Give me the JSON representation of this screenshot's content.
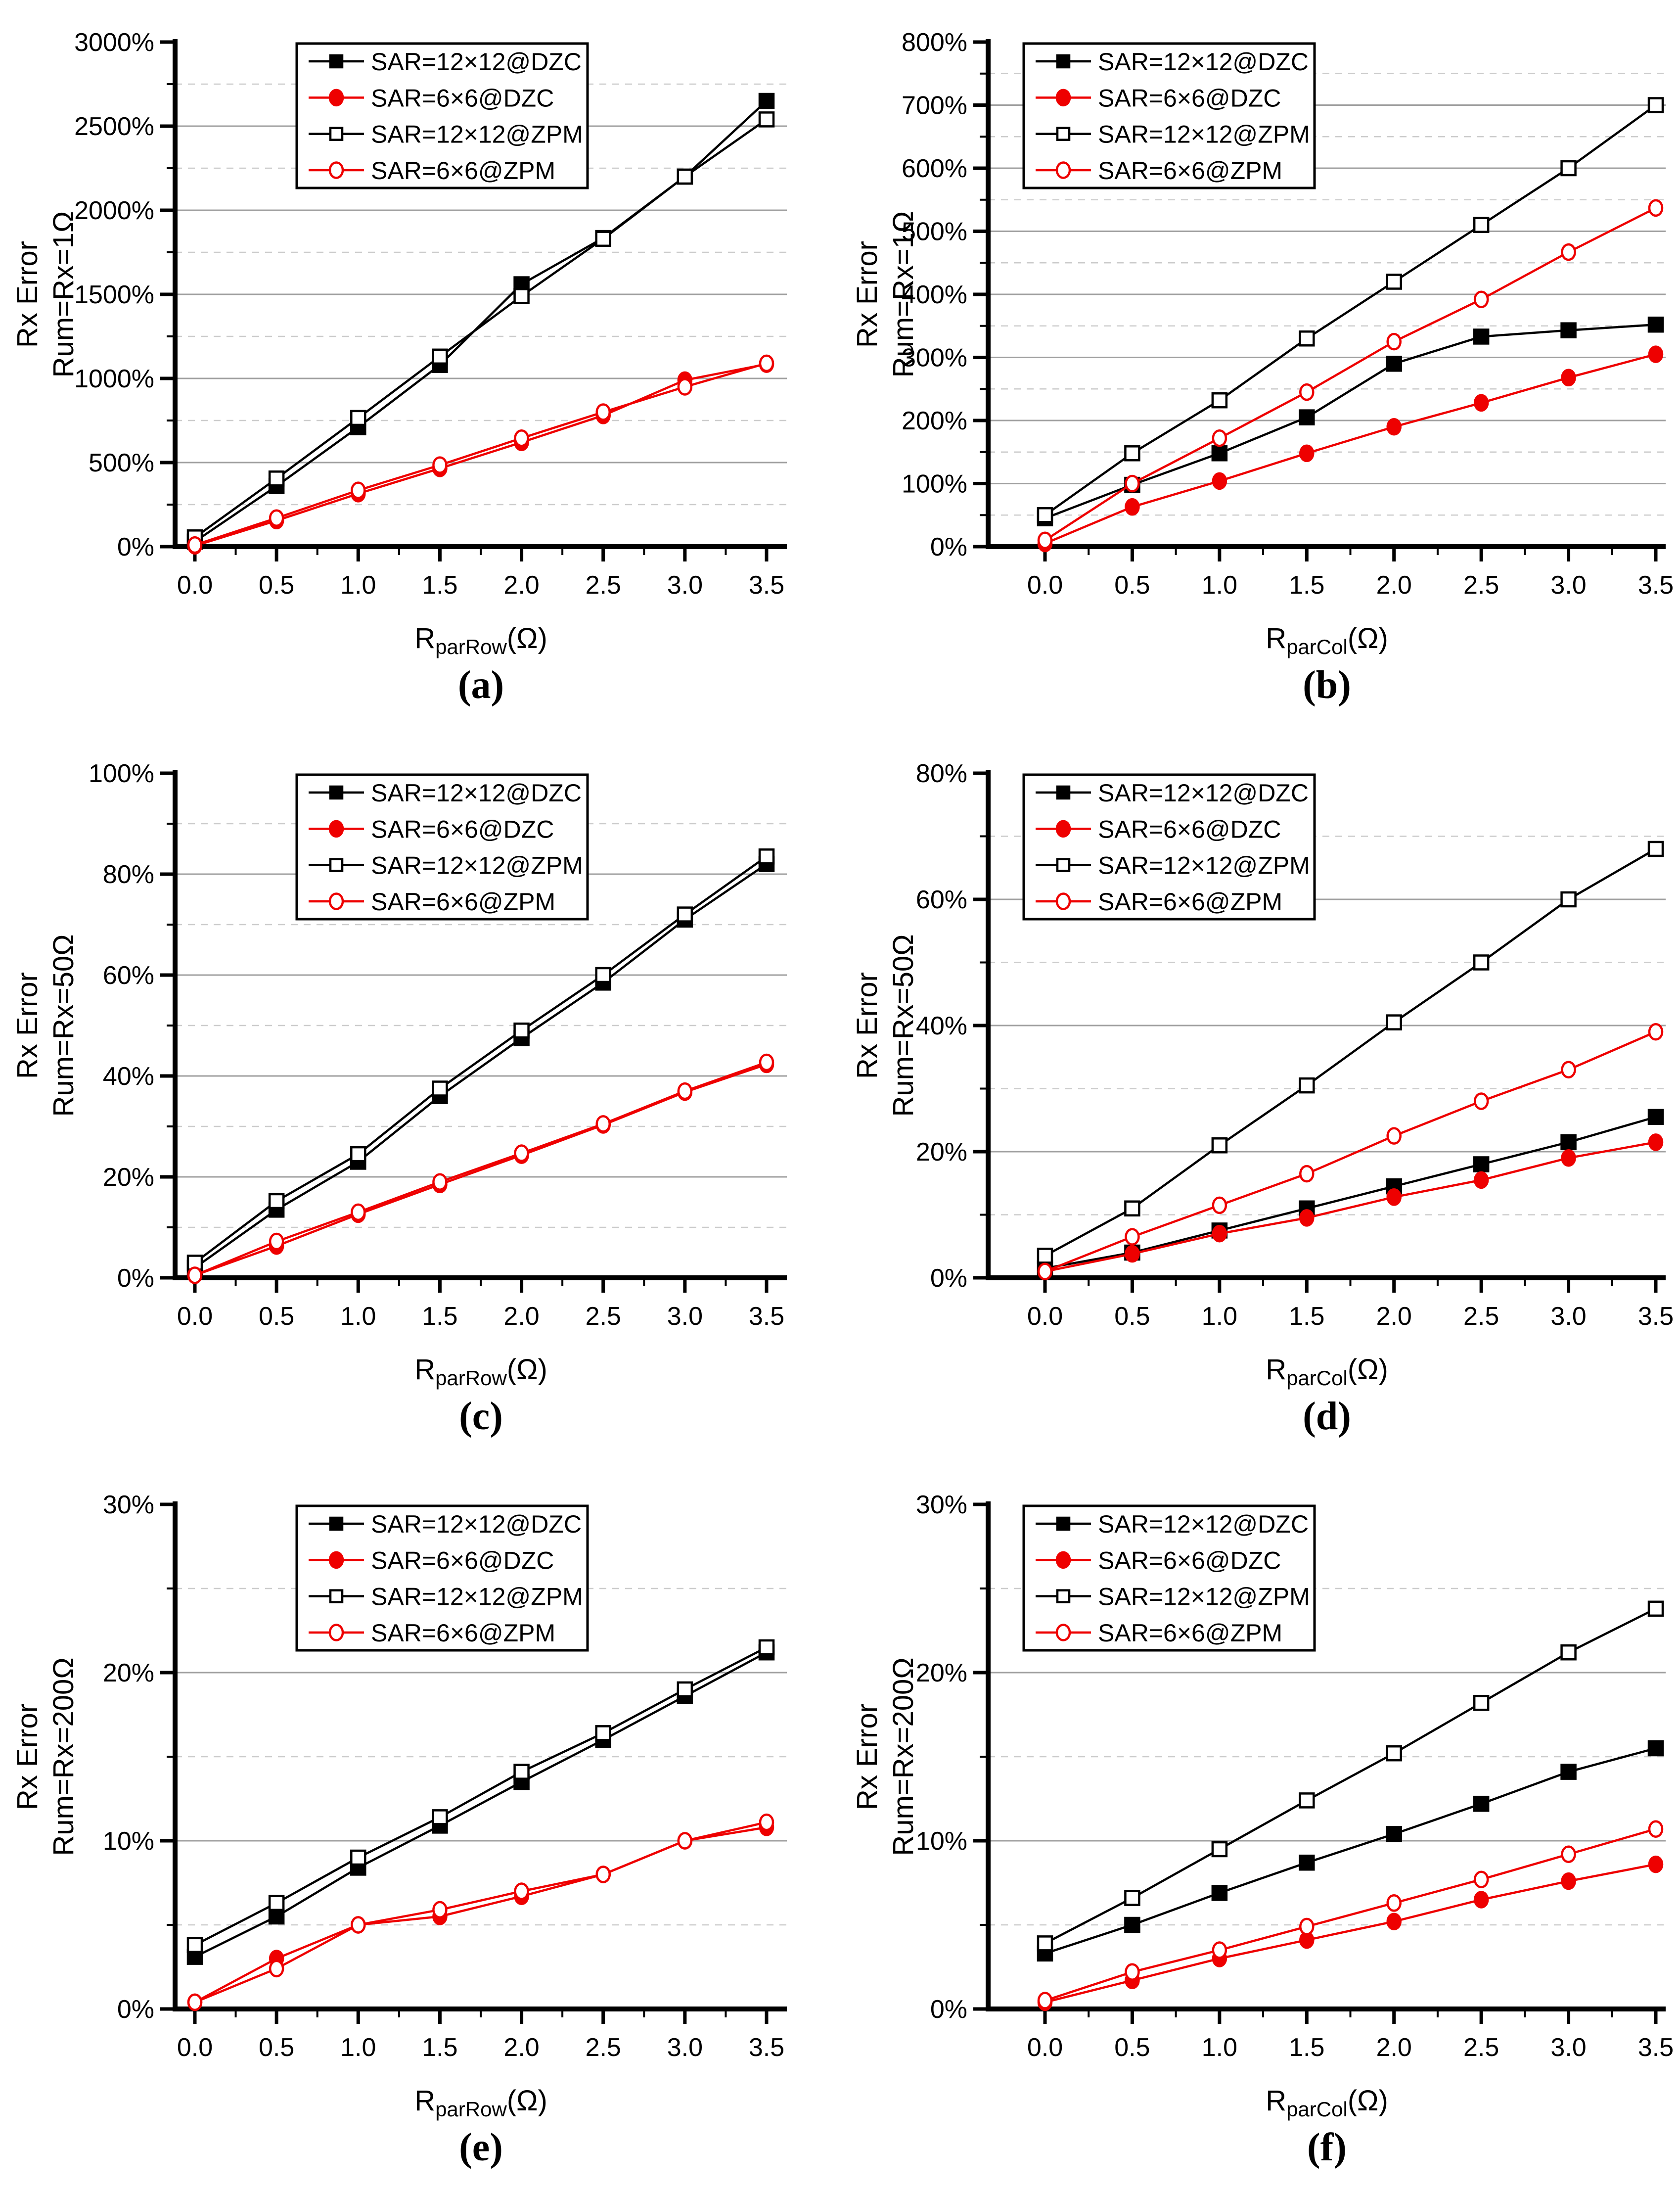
{
  "figure_title": "",
  "colors": {
    "black_series": "#000000",
    "red_series": "#ee0000",
    "major_grid": "#a0a0a0",
    "minor_grid": "#cccccc",
    "axis": "#000000",
    "background": "#ffffff"
  },
  "legend_labels": [
    "SAR=12×12@DZC",
    "SAR=6×6@DZC",
    "SAR=12×12@ZPM",
    "SAR=6×6@ZPM"
  ],
  "x_tick_labels": [
    "0.0",
    "0.5",
    "1.0",
    "1.5",
    "2.0",
    "2.5",
    "3.0",
    "3.5"
  ],
  "chart_data": [
    {
      "type": "line",
      "caption": "(a)",
      "xlabel": {
        "base": "R",
        "sub": "parRow",
        "unit": "(Ω)"
      },
      "ylabel_lines": [
        "Rx Error",
        "Rum=Rx=1Ω"
      ],
      "x": [
        0,
        0.5,
        1.0,
        1.5,
        2.0,
        2.5,
        3.0,
        3.5
      ],
      "xlim": [
        0,
        3.5
      ],
      "ylim": [
        0,
        3000
      ],
      "ytick_step": 500,
      "yminor_step": 250,
      "ytick_suffix": "%",
      "grid": true,
      "legend_position": "center",
      "series": [
        {
          "name": "SAR=12×12@DZC",
          "color": "#000000",
          "marker": "square",
          "filled": true,
          "values": [
            30,
            360,
            710,
            1080,
            1560,
            1835,
            2200,
            2650
          ]
        },
        {
          "name": "SAR=6×6@DZC",
          "color": "#ee0000",
          "marker": "circle",
          "filled": true,
          "values": [
            5,
            155,
            315,
            465,
            620,
            780,
            990,
            1085
          ]
        },
        {
          "name": "SAR=12×12@ZPM",
          "color": "#000000",
          "marker": "square",
          "filled": false,
          "values": [
            55,
            405,
            765,
            1130,
            1490,
            1830,
            2200,
            2540
          ]
        },
        {
          "name": "SAR=6×6@ZPM",
          "color": "#ee0000",
          "marker": "circle",
          "filled": false,
          "values": [
            10,
            170,
            335,
            485,
            645,
            800,
            950,
            1090
          ]
        }
      ]
    },
    {
      "type": "line",
      "caption": "(b)",
      "xlabel": {
        "base": "R",
        "sub": "parCol",
        "unit": "(Ω)"
      },
      "ylabel_lines": [
        "Rx Error",
        "Rum=Rx=1Ω"
      ],
      "x": [
        0,
        0.5,
        1.0,
        1.5,
        2.0,
        2.5,
        3.0,
        3.5
      ],
      "xlim": [
        0,
        3.5
      ],
      "ylim": [
        0,
        800
      ],
      "ytick_step": 100,
      "yminor_step": 50,
      "ytick_suffix": "%",
      "grid": true,
      "legend_position": "left",
      "series": [
        {
          "name": "SAR=12×12@DZC",
          "color": "#000000",
          "marker": "square",
          "filled": true,
          "values": [
            45,
            98,
            148,
            205,
            290,
            333,
            343,
            352
          ]
        },
        {
          "name": "SAR=6×6@DZC",
          "color": "#ee0000",
          "marker": "circle",
          "filled": true,
          "values": [
            5,
            63,
            104,
            148,
            190,
            228,
            268,
            305
          ]
        },
        {
          "name": "SAR=12×12@ZPM",
          "color": "#000000",
          "marker": "square",
          "filled": false,
          "values": [
            50,
            148,
            232,
            330,
            420,
            510,
            600,
            700
          ]
        },
        {
          "name": "SAR=6×6@ZPM",
          "color": "#ee0000",
          "marker": "circle",
          "filled": false,
          "values": [
            10,
            100,
            172,
            245,
            325,
            392,
            467,
            537
          ]
        }
      ]
    },
    {
      "type": "line",
      "caption": "(c)",
      "xlabel": {
        "base": "R",
        "sub": "parRow",
        "unit": "(Ω)"
      },
      "ylabel_lines": [
        "Rx Error",
        "Rum=Rx=50Ω"
      ],
      "x": [
        0,
        0.5,
        1.0,
        1.5,
        2.0,
        2.5,
        3.0,
        3.5
      ],
      "xlim": [
        0,
        3.5
      ],
      "ylim": [
        0,
        100
      ],
      "ytick_step": 20,
      "yminor_step": 10,
      "ytick_suffix": "%",
      "grid": true,
      "legend_position": "center",
      "series": [
        {
          "name": "SAR=12×12@DZC",
          "color": "#000000",
          "marker": "square",
          "filled": true,
          "values": [
            2,
            13.5,
            23,
            36,
            47.5,
            58.5,
            71,
            82
          ]
        },
        {
          "name": "SAR=6×6@DZC",
          "color": "#ee0000",
          "marker": "circle",
          "filled": true,
          "values": [
            0.5,
            6.3,
            12.6,
            18.5,
            24.3,
            30.3,
            36.8,
            42.3
          ]
        },
        {
          "name": "SAR=12×12@ZPM",
          "color": "#000000",
          "marker": "square",
          "filled": false,
          "values": [
            3,
            15.2,
            24.5,
            37.5,
            49,
            60,
            72,
            83.5
          ]
        },
        {
          "name": "SAR=6×6@ZPM",
          "color": "#ee0000",
          "marker": "circle",
          "filled": false,
          "values": [
            0.5,
            7.2,
            13,
            19,
            24.7,
            30.5,
            37,
            42.7
          ]
        }
      ]
    },
    {
      "type": "line",
      "caption": "(d)",
      "xlabel": {
        "base": "R",
        "sub": "parCol",
        "unit": "(Ω)"
      },
      "ylabel_lines": [
        "Rx Error",
        "Rum=Rx=50Ω"
      ],
      "x": [
        0,
        0.5,
        1.0,
        1.5,
        2.0,
        2.5,
        3.0,
        3.5
      ],
      "xlim": [
        0,
        3.5
      ],
      "ylim": [
        0,
        80
      ],
      "ytick_step": 20,
      "yminor_step": 10,
      "ytick_suffix": "%",
      "grid": true,
      "legend_position": "left",
      "series": [
        {
          "name": "SAR=12×12@DZC",
          "color": "#000000",
          "marker": "square",
          "filled": true,
          "values": [
            1.5,
            4,
            7.5,
            11,
            14.5,
            18,
            21.5,
            25.5
          ]
        },
        {
          "name": "SAR=6×6@DZC",
          "color": "#ee0000",
          "marker": "circle",
          "filled": true,
          "values": [
            1,
            3.8,
            7,
            9.5,
            12.8,
            15.5,
            19,
            21.5
          ]
        },
        {
          "name": "SAR=12×12@ZPM",
          "color": "#000000",
          "marker": "square",
          "filled": false,
          "values": [
            3.5,
            11,
            21,
            30.5,
            40.5,
            50,
            60,
            68
          ]
        },
        {
          "name": "SAR=6×6@ZPM",
          "color": "#ee0000",
          "marker": "circle",
          "filled": false,
          "values": [
            1,
            6.5,
            11.5,
            16.5,
            22.5,
            28,
            33,
            39
          ]
        }
      ]
    },
    {
      "type": "line",
      "caption": "(e)",
      "xlabel": {
        "base": "R",
        "sub": "parRow",
        "unit": "(Ω)"
      },
      "ylabel_lines": [
        "Rx Error",
        "Rum=Rx=200Ω"
      ],
      "x": [
        0,
        0.5,
        1.0,
        1.5,
        2.0,
        2.5,
        3.0,
        3.5
      ],
      "xlim": [
        0,
        3.5
      ],
      "ylim": [
        0,
        30
      ],
      "ytick_step": 10,
      "yminor_step": 5,
      "ytick_suffix": "%",
      "grid": true,
      "legend_position": "center",
      "series": [
        {
          "name": "SAR=12×12@DZC",
          "color": "#000000",
          "marker": "square",
          "filled": true,
          "values": [
            3.1,
            5.5,
            8.4,
            10.9,
            13.5,
            16.0,
            18.6,
            21.2
          ]
        },
        {
          "name": "SAR=6×6@DZC",
          "color": "#ee0000",
          "marker": "circle",
          "filled": true,
          "values": [
            0.4,
            3.0,
            5.0,
            5.5,
            6.7,
            8.0,
            10.0,
            10.8
          ]
        },
        {
          "name": "SAR=12×12@ZPM",
          "color": "#000000",
          "marker": "square",
          "filled": false,
          "values": [
            3.8,
            6.3,
            9.0,
            11.4,
            14.1,
            16.4,
            19.0,
            21.5
          ]
        },
        {
          "name": "SAR=6×6@ZPM",
          "color": "#ee0000",
          "marker": "circle",
          "filled": false,
          "values": [
            0.4,
            2.4,
            5.0,
            5.9,
            7.0,
            8.0,
            10.0,
            11.1
          ]
        }
      ]
    },
    {
      "type": "line",
      "caption": "(f)",
      "xlabel": {
        "base": "R",
        "sub": "parCol",
        "unit": "(Ω)"
      },
      "ylabel_lines": [
        "Rx Error",
        "Rum=Rx=200Ω"
      ],
      "x": [
        0,
        0.5,
        1.0,
        1.5,
        2.0,
        2.5,
        3.0,
        3.5
      ],
      "xlim": [
        0,
        3.5
      ],
      "ylim": [
        0,
        30
      ],
      "ytick_step": 10,
      "yminor_step": 5,
      "ytick_suffix": "%",
      "grid": true,
      "legend_position": "left",
      "series": [
        {
          "name": "SAR=12×12@DZC",
          "color": "#000000",
          "marker": "square",
          "filled": true,
          "values": [
            3.3,
            5.0,
            6.9,
            8.7,
            10.4,
            12.2,
            14.1,
            15.5
          ]
        },
        {
          "name": "SAR=6×6@DZC",
          "color": "#ee0000",
          "marker": "circle",
          "filled": true,
          "values": [
            0.4,
            1.7,
            3.0,
            4.1,
            5.2,
            6.5,
            7.6,
            8.6
          ]
        },
        {
          "name": "SAR=12×12@ZPM",
          "color": "#000000",
          "marker": "square",
          "filled": false,
          "values": [
            3.9,
            6.6,
            9.5,
            12.4,
            15.2,
            18.2,
            21.2,
            23.8
          ]
        },
        {
          "name": "SAR=6×6@ZPM",
          "color": "#ee0000",
          "marker": "circle",
          "filled": false,
          "values": [
            0.5,
            2.2,
            3.5,
            4.9,
            6.3,
            7.7,
            9.2,
            10.7
          ]
        }
      ]
    }
  ]
}
